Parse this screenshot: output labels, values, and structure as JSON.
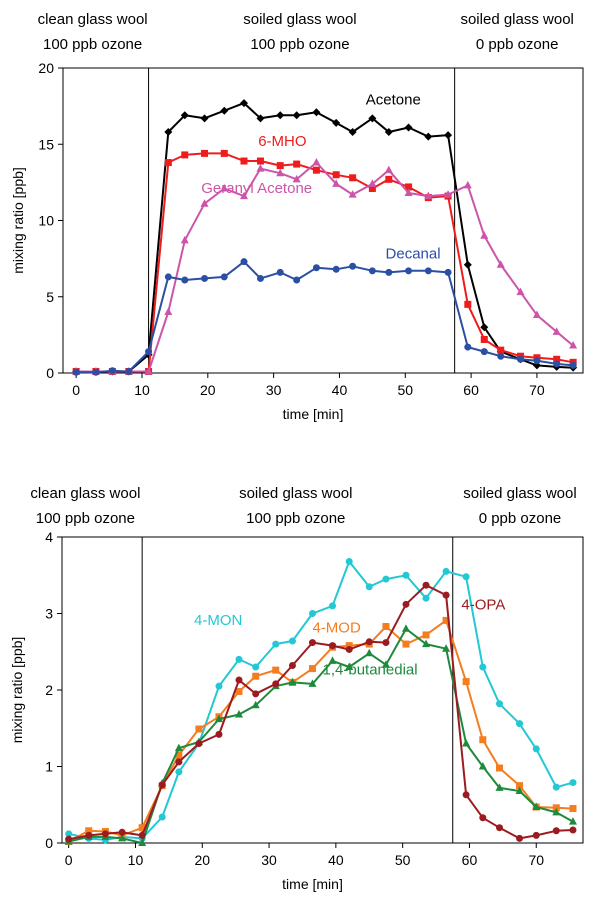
{
  "chart_data": [
    {
      "type": "line",
      "xlabel": "time [min]",
      "ylabel": "mixing ratio [ppb]",
      "xlim": [
        -2,
        77
      ],
      "ylim": [
        0,
        20
      ],
      "xticks": [
        0,
        10,
        20,
        30,
        40,
        50,
        60,
        70
      ],
      "yticks": [
        0,
        5,
        10,
        15,
        20
      ],
      "phase_lines_x": [
        11,
        57.5
      ],
      "phases": [
        {
          "line1": "clean glass wool",
          "line2": "100 ppb ozone",
          "x_center": 2.5
        },
        {
          "line1": "soiled glass wool",
          "line2": "100 ppb ozone",
          "x_center": 34
        },
        {
          "line1": "soiled glass wool",
          "line2": "0 ppb ozone",
          "x_center": 67
        }
      ],
      "series": [
        {
          "name": "Acetone",
          "color": "#000000",
          "marker": "diamond",
          "label_pos": [
            44,
            17.6
          ],
          "label_anchor": "start",
          "x": [
            0,
            3,
            5.5,
            8,
            11,
            14,
            16.5,
            19.5,
            22.5,
            25.5,
            28,
            31,
            33.5,
            36.5,
            39.5,
            42,
            45,
            47.5,
            50.5,
            53.5,
            56.5,
            59.5,
            62,
            64.5,
            67.5,
            70,
            73,
            75.5
          ],
          "y": [
            0.1,
            0.1,
            0.1,
            0.1,
            1.2,
            15.8,
            16.9,
            16.7,
            17.2,
            17.7,
            16.7,
            16.9,
            16.9,
            17.1,
            16.4,
            15.8,
            16.7,
            15.8,
            16.1,
            15.5,
            15.6,
            7.1,
            3.0,
            1.4,
            0.9,
            0.5,
            0.4,
            0.35
          ]
        },
        {
          "name": "6-MHO",
          "color": "#ee1c1c",
          "marker": "square",
          "label_pos": [
            35,
            14.9
          ],
          "label_anchor": "end",
          "x": [
            0,
            3,
            5.5,
            8,
            11,
            14,
            16.5,
            19.5,
            22.5,
            25.5,
            28,
            31,
            33.5,
            36.5,
            39.5,
            42,
            45,
            47.5,
            50.5,
            53.5,
            56.5,
            59.5,
            62,
            64.5,
            67.5,
            70,
            73,
            75.5
          ],
          "y": [
            0.1,
            0.1,
            0.1,
            0.1,
            0.1,
            13.8,
            14.3,
            14.4,
            14.4,
            13.9,
            13.9,
            13.6,
            13.7,
            13.3,
            13.0,
            12.8,
            12.1,
            12.7,
            12.2,
            11.5,
            11.6,
            4.5,
            2.2,
            1.5,
            1.1,
            1.0,
            0.9,
            0.7
          ]
        },
        {
          "name": "Geranyl Acetone",
          "color": "#cc55aa",
          "marker": "triangle",
          "label_pos": [
            19,
            11.8
          ],
          "label_anchor": "start",
          "x": [
            0,
            3,
            5.5,
            8,
            11,
            14,
            16.5,
            19.5,
            22.5,
            25.5,
            28,
            31,
            33.5,
            36.5,
            39.5,
            42,
            45,
            47.5,
            50.5,
            53.5,
            56.5,
            59.5,
            62,
            64.5,
            67.5,
            70,
            73,
            75.5
          ],
          "y": [
            0.1,
            0.1,
            0.1,
            0.1,
            0.1,
            4.0,
            8.7,
            11.1,
            12.1,
            11.6,
            13.4,
            13.1,
            12.7,
            13.8,
            12.4,
            11.7,
            12.4,
            13.3,
            11.8,
            11.6,
            11.7,
            12.3,
            9.0,
            7.1,
            5.3,
            3.8,
            2.7,
            1.8
          ]
        },
        {
          "name": "Decanal",
          "color": "#2b4fa3",
          "marker": "circle",
          "label_pos": [
            47,
            7.5
          ],
          "label_anchor": "start",
          "x": [
            0,
            3,
            5.5,
            8,
            11,
            14,
            16.5,
            19.5,
            22.5,
            25.5,
            28,
            31,
            33.5,
            36.5,
            39.5,
            42,
            45,
            47.5,
            50.5,
            53.5,
            56.5,
            59.5,
            62,
            64.5,
            67.5,
            70,
            73,
            75.5
          ],
          "y": [
            0.05,
            0.05,
            0.15,
            0.1,
            1.4,
            6.3,
            6.1,
            6.2,
            6.3,
            7.3,
            6.2,
            6.6,
            6.1,
            6.9,
            6.8,
            7.0,
            6.7,
            6.6,
            6.7,
            6.7,
            6.6,
            1.7,
            1.4,
            1.1,
            0.9,
            0.8,
            0.6,
            0.5
          ]
        }
      ]
    },
    {
      "type": "line",
      "xlabel": "time [min]",
      "ylabel": "mixing ratio [ppb]",
      "xlim": [
        -1,
        77
      ],
      "ylim": [
        0,
        4
      ],
      "xticks": [
        0,
        10,
        20,
        30,
        40,
        50,
        60,
        70
      ],
      "yticks": [
        0,
        1,
        2,
        3,
        4
      ],
      "phase_lines_x": [
        11,
        57.5
      ],
      "phases": [
        {
          "line1": "clean glass wool",
          "line2": "100 ppb ozone",
          "x_center": 2.5
        },
        {
          "line1": "soiled glass wool",
          "line2": "100 ppb ozone",
          "x_center": 34
        },
        {
          "line1": "soiled glass wool",
          "line2": "0 ppb ozone",
          "x_center": 68
        }
      ],
      "series": [
        {
          "name": "4-MON",
          "color": "#22c8d4",
          "marker": "circle",
          "label_pos": [
            26,
            2.85
          ],
          "label_anchor": "end",
          "x": [
            0,
            3,
            5.5,
            8,
            11,
            14,
            16.5,
            19.5,
            22.5,
            25.5,
            28,
            31,
            33.5,
            36.5,
            39.5,
            42,
            45,
            47.5,
            50.5,
            53.5,
            56.5,
            59.5,
            62,
            64.5,
            67.5,
            70,
            73,
            75.5
          ],
          "y": [
            0.12,
            0.06,
            0.04,
            0.08,
            0.06,
            0.34,
            0.93,
            1.3,
            2.05,
            2.4,
            2.3,
            2.6,
            2.64,
            3.0,
            3.1,
            3.68,
            3.35,
            3.45,
            3.5,
            3.2,
            3.55,
            3.48,
            2.3,
            1.82,
            1.56,
            1.23,
            0.73,
            0.79
          ]
        },
        {
          "name": "4-MOD",
          "color": "#f47d20",
          "marker": "square",
          "label_pos": [
            36.5,
            2.75
          ],
          "label_anchor": "start",
          "x": [
            0,
            3,
            5.5,
            8,
            11,
            14,
            16.5,
            19.5,
            22.5,
            25.5,
            28,
            31,
            33.5,
            36.5,
            39.5,
            42,
            45,
            47.5,
            50.5,
            53.5,
            56.5,
            59.5,
            62,
            64.5,
            67.5,
            70,
            73,
            75.5
          ],
          "y": [
            0.02,
            0.16,
            0.15,
            0.1,
            0.2,
            0.75,
            1.15,
            1.49,
            1.65,
            1.98,
            2.18,
            2.26,
            2.1,
            2.28,
            2.56,
            2.58,
            2.6,
            2.83,
            2.6,
            2.72,
            2.91,
            2.11,
            1.35,
            0.98,
            0.75,
            0.47,
            0.46,
            0.45
          ]
        },
        {
          "name": "1,4-butanedial",
          "color": "#1e8a3c",
          "marker": "triangle",
          "label_pos": [
            38,
            2.2
          ],
          "label_anchor": "start",
          "x": [
            0,
            3,
            5.5,
            8,
            11,
            14,
            16.5,
            19.5,
            22.5,
            25.5,
            28,
            31,
            33.5,
            36.5,
            39.5,
            42,
            45,
            47.5,
            50.5,
            53.5,
            56.5,
            59.5,
            62,
            64.5,
            67.5,
            70,
            73,
            75.5
          ],
          "y": [
            0.02,
            0.08,
            0.08,
            0.06,
            0.0,
            0.78,
            1.24,
            1.32,
            1.62,
            1.68,
            1.8,
            2.05,
            2.1,
            2.08,
            2.38,
            2.3,
            2.48,
            2.33,
            2.8,
            2.6,
            2.54,
            1.3,
            1.0,
            0.72,
            0.68,
            0.47,
            0.4,
            0.28
          ]
        },
        {
          "name": "4-OPA",
          "color": "#9b1b20",
          "marker": "circle",
          "label_pos": [
            58.8,
            3.05
          ],
          "label_anchor": "start",
          "x": [
            0,
            3,
            5.5,
            8,
            11,
            14,
            16.5,
            19.5,
            22.5,
            25.5,
            28,
            31,
            33.5,
            36.5,
            39.5,
            42,
            45,
            47.5,
            50.5,
            53.5,
            56.5,
            59.5,
            62,
            64.5,
            67.5,
            70,
            73,
            75.5
          ],
          "y": [
            0.05,
            0.1,
            0.12,
            0.14,
            0.1,
            0.76,
            1.06,
            1.3,
            1.42,
            2.13,
            1.95,
            2.08,
            2.32,
            2.62,
            2.58,
            2.53,
            2.63,
            2.62,
            3.12,
            3.37,
            3.24,
            0.63,
            0.33,
            0.2,
            0.06,
            0.1,
            0.16,
            0.17
          ]
        }
      ]
    }
  ]
}
